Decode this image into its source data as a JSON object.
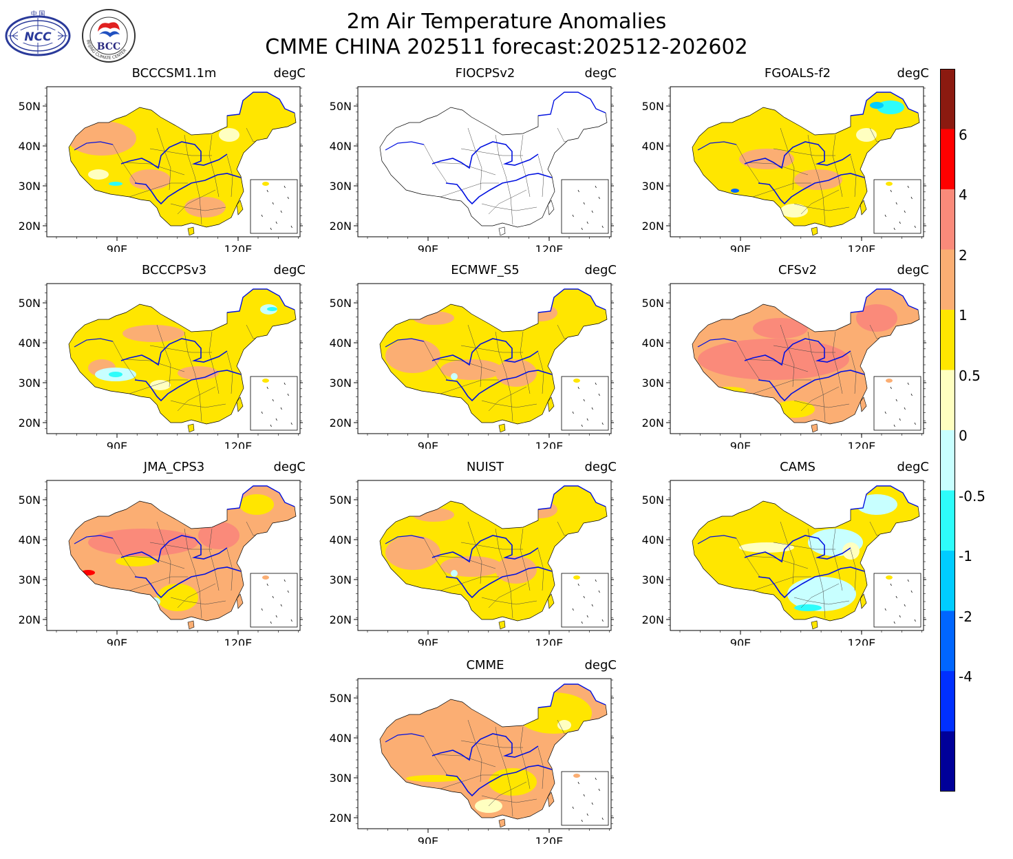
{
  "title": {
    "line1": "2m Air Temperature Anomalies",
    "line2": "CMME CHINA 202511 forecast:202512-202602"
  },
  "logos": {
    "ncc": {
      "text": "NCC",
      "top_text": "中 国"
    },
    "bcc": {
      "text": "BCC",
      "ring_text": "BEIJING CLIMATE CENTER"
    }
  },
  "unit": "degC",
  "y_ticks": [
    "50N",
    "40N",
    "30N",
    "20N"
  ],
  "x_ticks": [
    "90E",
    "120E"
  ],
  "panels": [
    {
      "name": "BCCCSM1.1m",
      "scheme": "mixed_orange_yellow"
    },
    {
      "name": "FIOCPSv2",
      "scheme": "empty"
    },
    {
      "name": "FGOALS-f2",
      "scheme": "yellow_cold_ne"
    },
    {
      "name": "BCCCPSv3",
      "scheme": "yellow_orange_cold_tibet"
    },
    {
      "name": "ECMWF_S5",
      "scheme": "yellow_orange"
    },
    {
      "name": "CFSv2",
      "scheme": "salmon"
    },
    {
      "name": "JMA_CPS3",
      "scheme": "orange_salmon"
    },
    {
      "name": "NUIST",
      "scheme": "yellow_orange"
    },
    {
      "name": "CAMS",
      "scheme": "yellow_cyan_east"
    },
    {
      "name": "CMME",
      "scheme": "orange_yellow"
    }
  ],
  "colorbar": {
    "levels": [
      "6",
      "4",
      "2",
      "1",
      "0.5",
      "0",
      "-0.5",
      "-1",
      "-2",
      "-4"
    ],
    "colors": [
      "#8b1a10",
      "#ff0000",
      "#fa8a7a",
      "#fbae73",
      "#ffe600",
      "#ffffc0",
      "#c8ffff",
      "#2efcfa",
      "#00ccff",
      "#0066ff",
      "#0030ff",
      "#000099"
    ]
  }
}
